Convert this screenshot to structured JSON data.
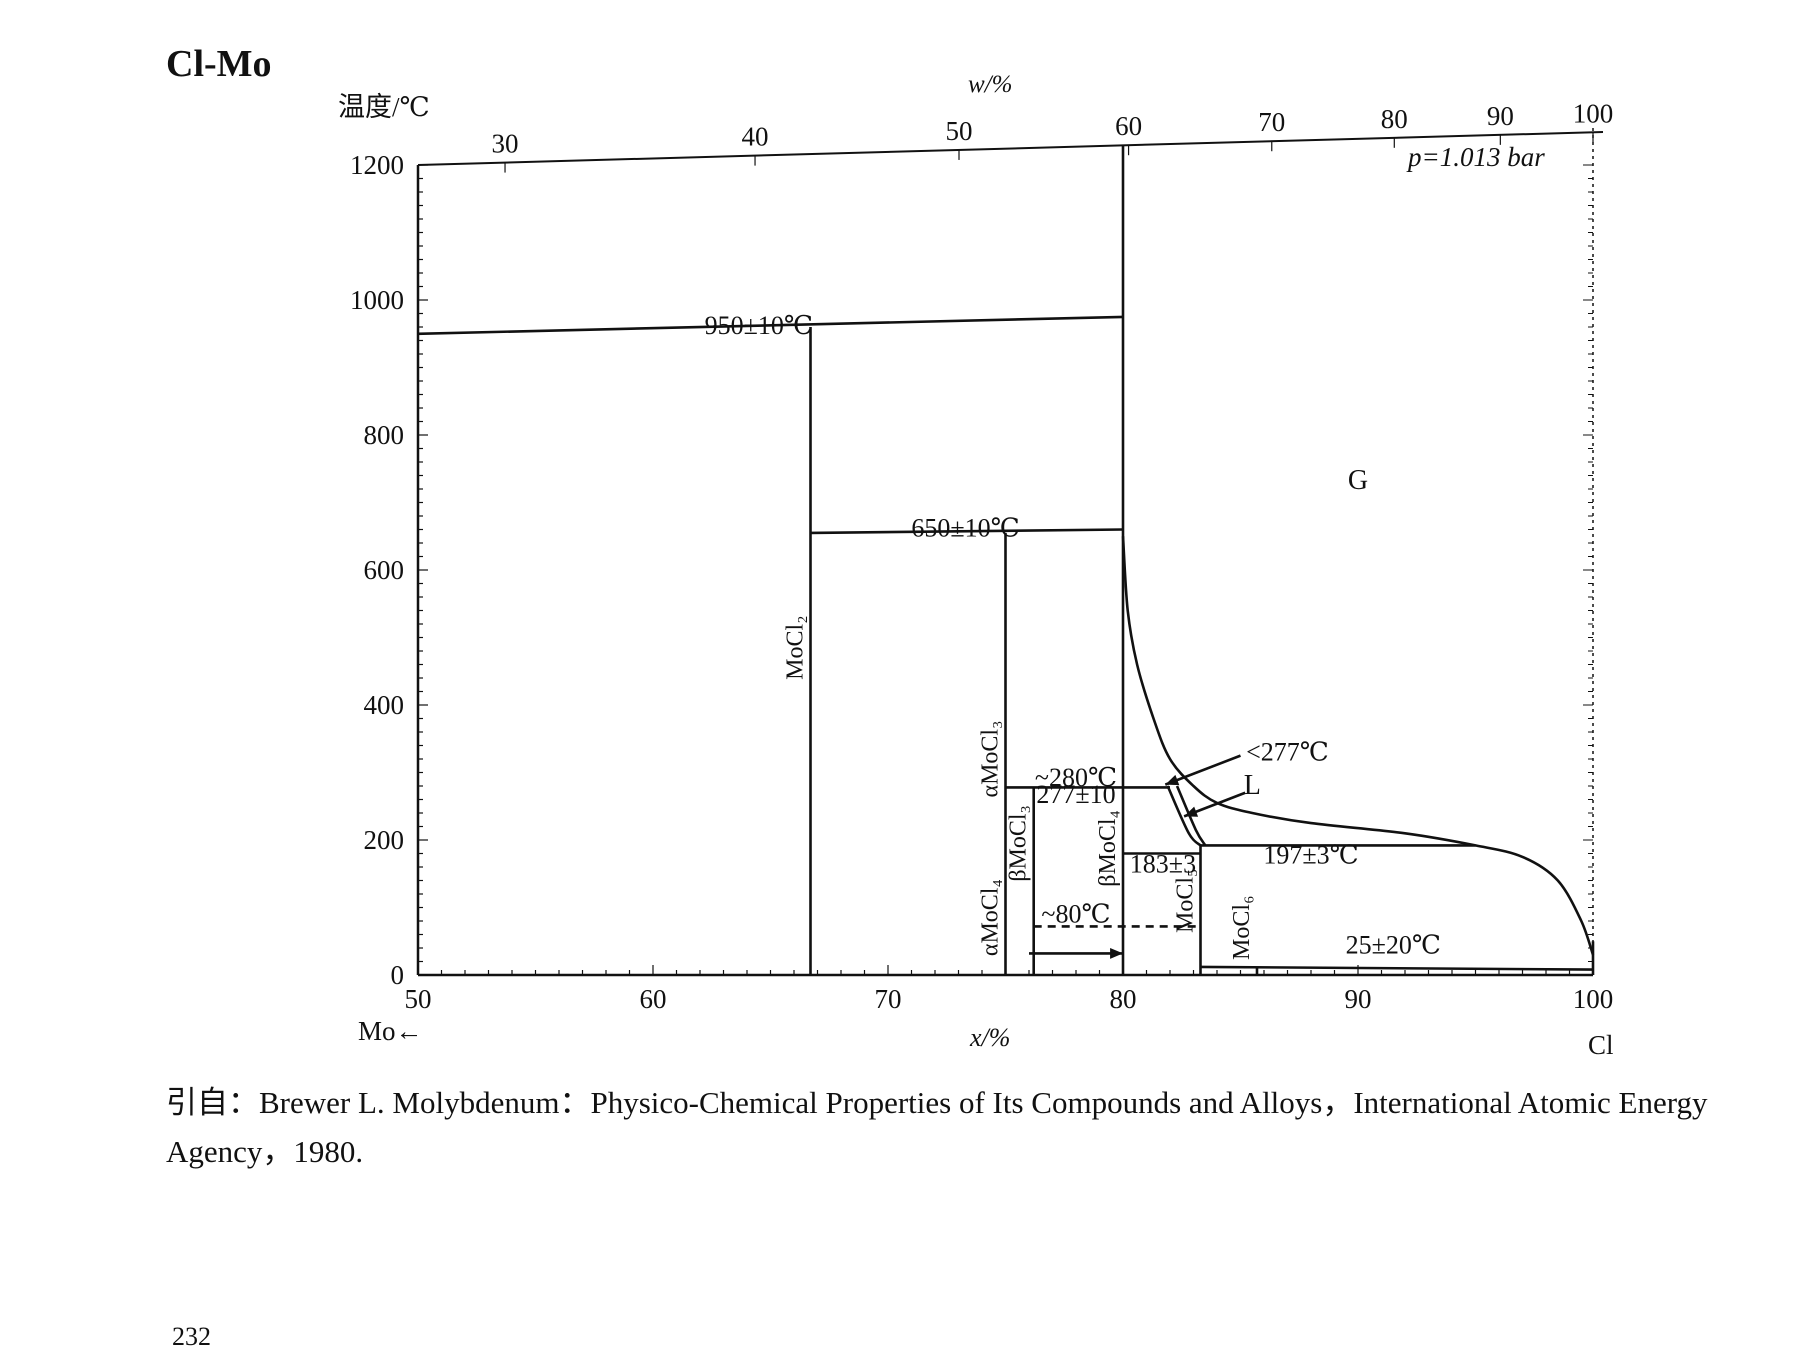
{
  "chart_data": {
    "type": "phase-diagram",
    "title": "Cl-Mo",
    "ylabel": "温度/℃",
    "xlabel": "x/%",
    "top_axis_label": "w/%",
    "left_element": "Mo←",
    "right_element": "Cl",
    "pressure_note": "p=1.013 bar",
    "xlim": [
      50,
      100
    ],
    "ylim": [
      0,
      1200
    ],
    "x_ticks": [
      50,
      60,
      70,
      80,
      90,
      100
    ],
    "y_ticks": [
      0,
      200,
      400,
      600,
      800,
      1000,
      1200
    ],
    "top_ticks": [
      30,
      40,
      50,
      60,
      70,
      80,
      90,
      100
    ],
    "phase_labels": [
      {
        "text": "G",
        "x": 90,
        "y": 720
      },
      {
        "text": "L",
        "x": 85.5,
        "y": 268
      }
    ],
    "compound_labels": [
      {
        "name": "MoCl₂",
        "x": 66.7,
        "y_range": [
          410,
          560
        ]
      },
      {
        "name": "αMoCl₃",
        "x": 75,
        "y_range": [
          270,
          370
        ]
      },
      {
        "name": "βMoCl₃",
        "x": 76.2,
        "y_range": [
          130,
          260
        ]
      },
      {
        "name": "αMoCl₄",
        "x": 75,
        "y_range": [
          20,
          150
        ]
      },
      {
        "name": "βMoCl₄",
        "x": 80,
        "y_range": [
          120,
          255
        ]
      },
      {
        "name": "MoCl₅",
        "x": 83.3,
        "y_range": [
          60,
          160
        ]
      },
      {
        "name": "MoCl₆",
        "x": 85.7,
        "y_range": [
          20,
          120
        ]
      }
    ],
    "annotations": [
      {
        "text": "950±10℃",
        "x": 64.5,
        "y": 950
      },
      {
        "text": "650±10℃",
        "x": 73.3,
        "y": 650
      },
      {
        "text": "~280℃",
        "x": 78,
        "y": 280
      },
      {
        "text": "277±10",
        "x": 78,
        "y": 255
      },
      {
        "text": "183±3",
        "x": 81.7,
        "y": 152
      },
      {
        "text": "197±3℃",
        "x": 88,
        "y": 165
      },
      {
        "text": "~80℃",
        "x": 78,
        "y": 78
      },
      {
        "text": "<277℃",
        "x": 87,
        "y": 318
      },
      {
        "text": "25±20℃",
        "x": 91.5,
        "y": 32
      }
    ],
    "lines": [
      {
        "points": [
          [
            50,
            950
          ],
          [
            80,
            975
          ]
        ]
      },
      {
        "points": [
          [
            66.7,
            0
          ],
          [
            66.7,
            960
          ]
        ]
      },
      {
        "points": [
          [
            66.7,
            655
          ],
          [
            80,
            660
          ]
        ]
      },
      {
        "points": [
          [
            75,
            0
          ],
          [
            75,
            655
          ]
        ]
      },
      {
        "points": [
          [
            75,
            278
          ],
          [
            82,
            278
          ]
        ]
      },
      {
        "points": [
          [
            76.2,
            0
          ],
          [
            76.2,
            278
          ]
        ]
      },
      {
        "points": [
          [
            80,
            0
          ],
          [
            80,
            1230
          ]
        ]
      },
      {
        "points": [
          [
            80,
            180
          ],
          [
            83.3,
            180
          ]
        ]
      },
      {
        "points": [
          [
            83.3,
            0
          ],
          [
            83.3,
            192
          ]
        ]
      },
      {
        "points": [
          [
            83.3,
            192
          ],
          [
            95,
            192
          ]
        ]
      },
      {
        "points": [
          [
            83.3,
            12
          ],
          [
            100,
            8
          ]
        ]
      },
      {
        "points": [
          [
            85.7,
            0
          ],
          [
            85.7,
            12
          ]
        ]
      },
      {
        "points": [
          [
            100,
            0
          ],
          [
            100,
            50
          ]
        ]
      }
    ],
    "dashed_lines": [
      {
        "points": [
          [
            76.2,
            72
          ],
          [
            83.3,
            72
          ]
        ]
      }
    ],
    "curves": [
      {
        "name": "gas-liquidus",
        "points": [
          [
            80,
            650
          ],
          [
            80.2,
            540
          ],
          [
            80.6,
            460
          ],
          [
            81.3,
            380
          ],
          [
            82,
            320
          ],
          [
            83,
            280
          ],
          [
            84,
            255
          ],
          [
            85.5,
            240
          ],
          [
            88,
            225
          ],
          [
            92,
            210
          ],
          [
            95,
            192
          ],
          [
            97,
            175
          ],
          [
            98.5,
            140
          ],
          [
            99.5,
            80
          ],
          [
            100,
            30
          ]
        ]
      },
      {
        "name": "liquid-left",
        "points": [
          [
            81.9,
            280
          ],
          [
            82.8,
            210
          ],
          [
            83.3,
            192
          ]
        ]
      },
      {
        "name": "liquid-right",
        "points": [
          [
            82.3,
            280
          ],
          [
            83.1,
            215
          ],
          [
            83.5,
            192
          ]
        ]
      }
    ],
    "arrows": [
      {
        "from": [
          85,
          325
        ],
        "to": [
          81.8,
          282
        ]
      },
      {
        "from": [
          85.2,
          270
        ],
        "to": [
          82.6,
          235
        ]
      },
      {
        "from": [
          76,
          32
        ],
        "to": [
          80,
          32
        ]
      }
    ]
  },
  "caption": "引自：Brewer L. Molybdenum：Physico-Chemical Properties of Its Compounds and Alloys，International Atomic Energy Agency，1980.",
  "page_number": "232"
}
